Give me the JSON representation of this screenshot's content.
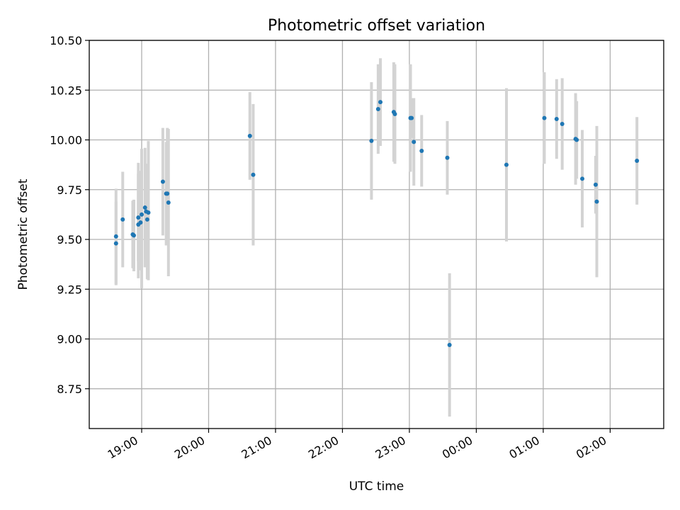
{
  "chart_data": {
    "type": "scatter",
    "title": "Photometric offset variation",
    "xlabel": "UTC time",
    "ylabel": "Photometric offset",
    "x_ticks": [
      "19:00",
      "20:00",
      "21:00",
      "22:00",
      "23:00",
      "00:00",
      "01:00",
      "02:00"
    ],
    "y_ticks": [
      "8.75",
      "9.00",
      "9.25",
      "9.50",
      "9.75",
      "10.00",
      "10.25",
      "10.50"
    ],
    "xlim": [
      "18:13",
      "02:48"
    ],
    "ylim": [
      8.55,
      10.5
    ],
    "grid": true,
    "legend": "none",
    "colors": {
      "point": "#1f77b4",
      "errorbar": "#d3d3d3"
    },
    "points": [
      {
        "x": "18:37",
        "y": 9.515,
        "err_low": 0.24,
        "err_high": 0.24
      },
      {
        "x": "18:37",
        "y": 9.48,
        "err_low": 0.21,
        "err_high": 0.21
      },
      {
        "x": "18:43",
        "y": 9.6,
        "err_low": 0.24,
        "err_high": 0.24
      },
      {
        "x": "18:52",
        "y": 9.525,
        "err_low": 0.17,
        "err_high": 0.17
      },
      {
        "x": "18:53",
        "y": 9.52,
        "err_low": 0.18,
        "err_high": 0.18
      },
      {
        "x": "18:57",
        "y": 9.61,
        "err_low": 0.22,
        "err_high": 0.22
      },
      {
        "x": "18:57",
        "y": 9.575,
        "err_low": 0.27,
        "err_high": 0.31
      },
      {
        "x": "18:59",
        "y": 9.585,
        "err_low": 0.24,
        "err_high": 0.26
      },
      {
        "x": "19:00",
        "y": 9.625,
        "err_low": 0.37,
        "err_high": 0.33
      },
      {
        "x": "19:03",
        "y": 9.66,
        "err_low": 0.3,
        "err_high": 0.3
      },
      {
        "x": "19:04",
        "y": 9.64,
        "err_low": 0.24,
        "err_high": 0.24
      },
      {
        "x": "19:05",
        "y": 9.6,
        "err_low": 0.3,
        "err_high": 0.28
      },
      {
        "x": "19:06",
        "y": 9.635,
        "err_low": 0.34,
        "err_high": 0.36
      },
      {
        "x": "19:19",
        "y": 9.79,
        "err_low": 0.27,
        "err_high": 0.27
      },
      {
        "x": "19:22",
        "y": 9.73,
        "err_low": 0.26,
        "err_high": 0.26
      },
      {
        "x": "19:23",
        "y": 9.73,
        "err_low": 0.25,
        "err_high": 0.33
      },
      {
        "x": "19:24",
        "y": 9.685,
        "err_low": 0.37,
        "err_high": 0.37
      },
      {
        "x": "20:37",
        "y": 10.02,
        "err_low": 0.22,
        "err_high": 0.22
      },
      {
        "x": "20:40",
        "y": 9.825,
        "err_low": 0.355,
        "err_high": 0.355
      },
      {
        "x": "22:26",
        "y": 9.995,
        "err_low": 0.295,
        "err_high": 0.295
      },
      {
        "x": "22:32",
        "y": 10.155,
        "err_low": 0.225,
        "err_high": 0.225
      },
      {
        "x": "22:34",
        "y": 10.19,
        "err_low": 0.22,
        "err_high": 0.22
      },
      {
        "x": "22:46",
        "y": 10.14,
        "err_low": 0.25,
        "err_high": 0.25
      },
      {
        "x": "22:47",
        "y": 10.13,
        "err_low": 0.25,
        "err_high": 0.25
      },
      {
        "x": "23:01",
        "y": 10.11,
        "err_low": 0.27,
        "err_high": 0.27
      },
      {
        "x": "23:02",
        "y": 10.11,
        "err_low": 0.1,
        "err_high": 0.1
      },
      {
        "x": "23:04",
        "y": 9.99,
        "err_low": 0.22,
        "err_high": 0.22
      },
      {
        "x": "23:11",
        "y": 9.945,
        "err_low": 0.18,
        "err_high": 0.18
      },
      {
        "x": "23:34",
        "y": 9.91,
        "err_low": 0.185,
        "err_high": 0.185
      },
      {
        "x": "23:36",
        "y": 8.97,
        "err_low": 0.36,
        "err_high": 0.36
      },
      {
        "x": "00:27",
        "y": 9.875,
        "err_low": 0.385,
        "err_high": 0.385
      },
      {
        "x": "01:01",
        "y": 10.11,
        "err_low": 0.23,
        "err_high": 0.23
      },
      {
        "x": "01:12",
        "y": 10.105,
        "err_low": 0.2,
        "err_high": 0.2
      },
      {
        "x": "01:17",
        "y": 10.08,
        "err_low": 0.23,
        "err_high": 0.23
      },
      {
        "x": "01:29",
        "y": 10.005,
        "err_low": 0.23,
        "err_high": 0.23
      },
      {
        "x": "01:30",
        "y": 10.0,
        "err_low": 0.195,
        "err_high": 0.195
      },
      {
        "x": "01:35",
        "y": 9.805,
        "err_low": 0.245,
        "err_high": 0.245
      },
      {
        "x": "01:47",
        "y": 9.775,
        "err_low": 0.145,
        "err_high": 0.145
      },
      {
        "x": "01:48",
        "y": 9.69,
        "err_low": 0.38,
        "err_high": 0.38
      },
      {
        "x": "02:24",
        "y": 9.895,
        "err_low": 0.22,
        "err_high": 0.22
      }
    ]
  }
}
